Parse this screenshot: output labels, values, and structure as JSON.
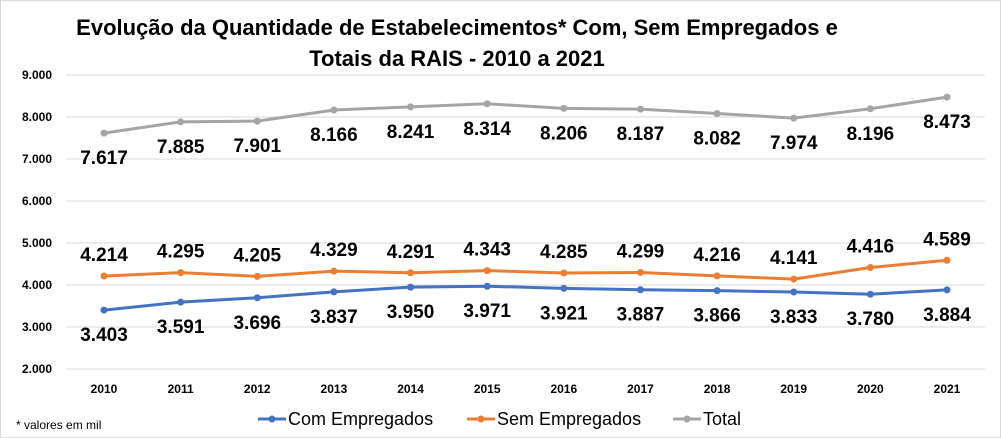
{
  "chart_data": {
    "type": "line",
    "title_lines": [
      "Evolução da Quantidade de Estabelecimentos* Com, Sem Empregados e",
      "Totais da RAIS - 2010 a 2021"
    ],
    "footnote": "* valores em mil",
    "categories": [
      "2010",
      "2011",
      "2012",
      "2013",
      "2014",
      "2015",
      "2016",
      "2017",
      "2018",
      "2019",
      "2020",
      "2021"
    ],
    "ylim": [
      2000,
      9000
    ],
    "yticks": [
      2000,
      3000,
      4000,
      5000,
      6000,
      7000,
      8000,
      9000
    ],
    "ytick_labels": [
      "2.000",
      "3.000",
      "4.000",
      "5.000",
      "6.000",
      "7.000",
      "8.000",
      "9.000"
    ],
    "grid": true,
    "legend_position": "bottom",
    "series": [
      {
        "name": "Com Empregados",
        "color": "#4472c4",
        "label_position": "below",
        "values": [
          3403,
          3591,
          3696,
          3837,
          3950,
          3971,
          3921,
          3887,
          3866,
          3833,
          3780,
          3884
        ],
        "labels": [
          "3.403",
          "3.591",
          "3.696",
          "3.837",
          "3.950",
          "3.971",
          "3.921",
          "3.887",
          "3.866",
          "3.833",
          "3.780",
          "3.884"
        ]
      },
      {
        "name": "Sem Empregados",
        "color": "#ed7d31",
        "label_position": "above",
        "values": [
          4214,
          4295,
          4205,
          4329,
          4291,
          4343,
          4285,
          4299,
          4216,
          4141,
          4416,
          4589
        ],
        "labels": [
          "4.214",
          "4.295",
          "4.205",
          "4.329",
          "4.291",
          "4.343",
          "4.285",
          "4.299",
          "4.216",
          "4.141",
          "4.416",
          "4.589"
        ]
      },
      {
        "name": "Total",
        "color": "#a5a5a5",
        "label_position": "below",
        "values": [
          7617,
          7885,
          7901,
          8166,
          8241,
          8314,
          8206,
          8187,
          8082,
          7974,
          8196,
          8473
        ],
        "labels": [
          "7.617",
          "7.885",
          "7.901",
          "8.166",
          "8.241",
          "8.314",
          "8.206",
          "8.187",
          "8.082",
          "7.974",
          "8.196",
          "8.473"
        ]
      }
    ]
  }
}
